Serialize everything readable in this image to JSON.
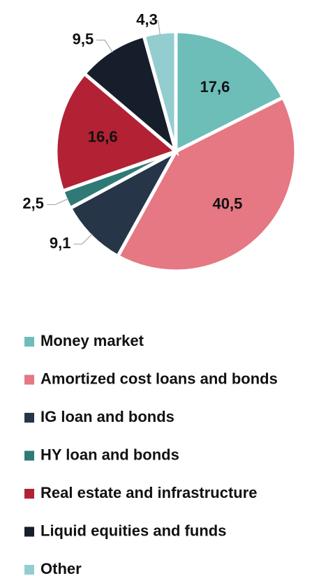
{
  "chart_data": {
    "type": "pie",
    "categories": [
      "Money market",
      "Amortized cost loans and bonds",
      "IG loan and bonds",
      "HY loan and bonds",
      "Real estate and infrastructure",
      "Liquid equities and funds",
      "Other"
    ],
    "values": [
      17.6,
      40.5,
      9.1,
      2.5,
      16.6,
      9.5,
      4.3
    ],
    "value_labels": [
      "17,6",
      "40,5",
      "9,1",
      "2,5",
      "16,6",
      "9,5",
      "4,3"
    ],
    "colors": [
      "#6dbdb8",
      "#e57883",
      "#263548",
      "#2f7a76",
      "#b22234",
      "#161e2b",
      "#93cdd0"
    ],
    "legend": "bottom"
  }
}
